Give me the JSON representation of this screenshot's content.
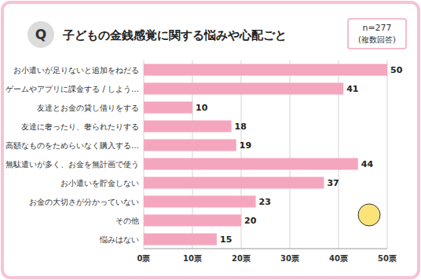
{
  "chart_data": {
    "type": "bar",
    "orientation": "horizontal",
    "title": "子どもの金銭感覚に関する悩みや心配ごと",
    "annotations": [
      "Q",
      "n=277",
      "(複数回答)"
    ],
    "categories": [
      "お小遣いが足りないと追加をねだる",
      "ゲームやアプリに課金する / しよう…",
      "友達とお金の貸し借りをする",
      "友達に奢ったり、奢られたりする",
      "高額なものをためらいなく購入する…",
      "無駄遣いが多く、お金を無計画で使う",
      "お小遣いを貯金しない",
      "お金の大切さが分かっていない",
      "その他",
      "悩みはない"
    ],
    "values": [
      50,
      41,
      10,
      18,
      19,
      44,
      37,
      23,
      20,
      15
    ],
    "color": "#f5a6bf",
    "xlim": [
      0,
      50
    ],
    "xticks": [
      {
        "value": 0,
        "label": "0票"
      },
      {
        "value": 10,
        "label": "10票"
      },
      {
        "value": 20,
        "label": "20票"
      },
      {
        "value": 30,
        "label": "30票"
      },
      {
        "value": 40,
        "label": "40票"
      },
      {
        "value": 50,
        "label": "50票"
      }
    ],
    "grid": true,
    "data_labels": true
  }
}
